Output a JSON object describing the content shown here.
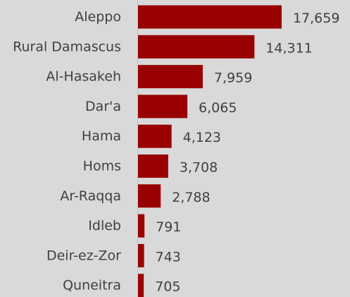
{
  "chart_data": {
    "type": "bar",
    "orientation": "horizontal",
    "categories": [
      "Aleppo",
      "Rural Damascus",
      "Al-Hasakeh",
      "Dar'a",
      "Hama",
      "Homs",
      "Ar-Raqqa",
      "Idleb",
      "Deir-ez-Zor",
      "Quneitra"
    ],
    "values": [
      17659,
      14311,
      7959,
      6065,
      4123,
      3708,
      2788,
      791,
      743,
      705
    ],
    "value_labels": [
      "17,659",
      "14,311",
      "7,959",
      "6,065",
      "4,123",
      "3,708",
      "2,788",
      "791",
      "743",
      "705"
    ],
    "bar_color": "#990000",
    "background_color": "#d9d9d9",
    "grid": false,
    "legend": "none"
  }
}
